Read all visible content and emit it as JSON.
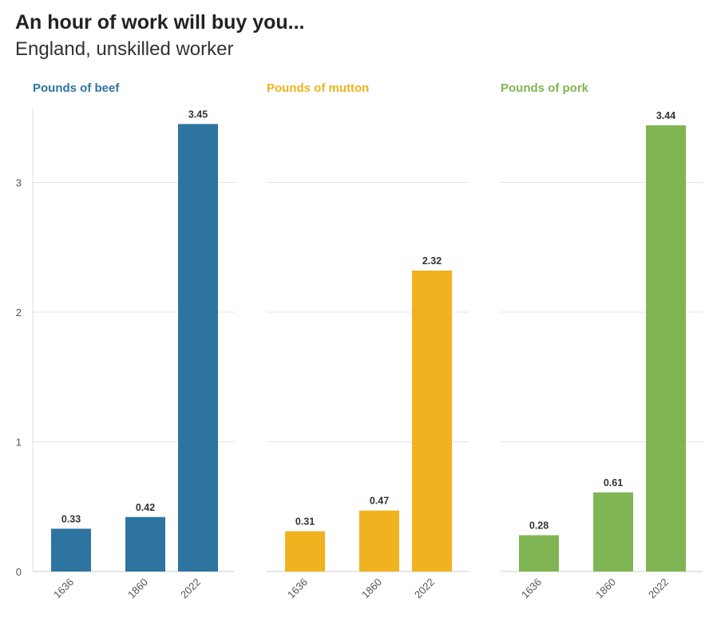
{
  "title": "An hour of work will buy you...",
  "subtitle": "England, unskilled worker",
  "chart_data": {
    "type": "bar",
    "ylim": [
      0,
      3.6
    ],
    "y_ticks": [
      0,
      1,
      2,
      3
    ],
    "grid": true,
    "categories": [
      "1636",
      "1860",
      "2022"
    ],
    "series": [
      {
        "name": "Pounds of beef",
        "color": "#2e74a0",
        "values": [
          0.33,
          0.42,
          3.45
        ],
        "labels": [
          "0.33",
          "0.42",
          "3.45"
        ]
      },
      {
        "name": "Pounds of mutton",
        "color": "#f0b21e",
        "values": [
          0.31,
          0.47,
          2.32
        ],
        "labels": [
          "0.31",
          "0.47",
          "2.32"
        ]
      },
      {
        "name": "Pounds of pork",
        "color": "#80b553",
        "values": [
          0.28,
          0.61,
          3.44
        ],
        "labels": [
          "0.28",
          "0.61",
          "3.44"
        ]
      }
    ]
  }
}
